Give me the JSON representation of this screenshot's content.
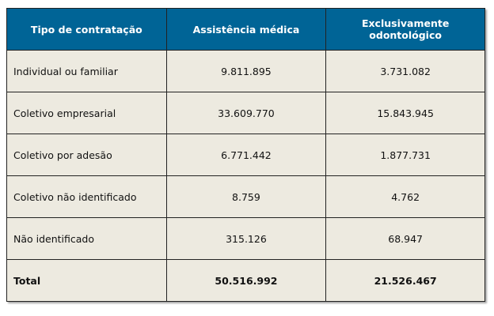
{
  "colors": {
    "header_bg": "#006496",
    "header_text": "#ffffff",
    "body_bg": "#edeae0"
  },
  "headers": [
    "Tipo de contratação",
    "Assistência médica",
    "Exclusivamente odontológico"
  ],
  "rows": [
    {
      "tipo": "Individual ou familiar",
      "medica": "9.811.895",
      "odonto": "3.731.082"
    },
    {
      "tipo": "Coletivo empresarial",
      "medica": "33.609.770",
      "odonto": "15.843.945"
    },
    {
      "tipo": "Coletivo por adesão",
      "medica": "6.771.442",
      "odonto": "1.877.731"
    },
    {
      "tipo": "Coletivo não identificado",
      "medica": "8.759",
      "odonto": "4.762"
    },
    {
      "tipo": "Não identificado",
      "medica": "315.126",
      "odonto": "68.947"
    }
  ],
  "total": {
    "tipo": "Total",
    "medica": "50.516.992",
    "odonto": "21.526.467"
  }
}
